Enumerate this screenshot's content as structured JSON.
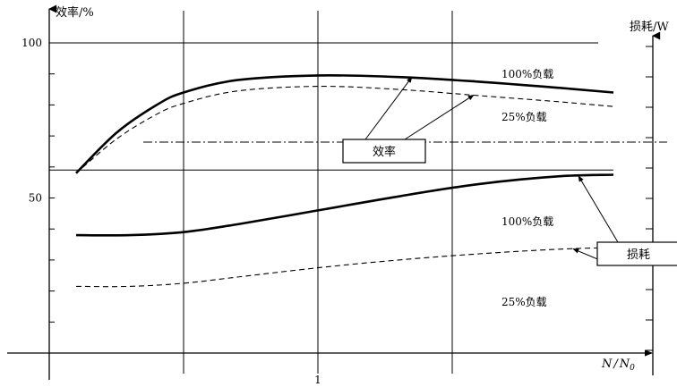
{
  "chart_data": {
    "type": "line",
    "title": "",
    "axes": {
      "left_label": "效率/%",
      "right_label": "损耗/W",
      "x_label_main": "N",
      "x_label_sep": "/",
      "x_label_sub": "N",
      "x_label_subscript": "0",
      "y_ticks": [
        {
          "label": "100",
          "value": 100
        },
        {
          "label": "50",
          "value": 50
        }
      ],
      "x_ticks": [
        {
          "label": "1",
          "value": 1.0
        }
      ],
      "x_range": [
        0.0,
        2.3
      ],
      "y_range": [
        0,
        110
      ]
    },
    "grid": {
      "vertical": [
        0.5,
        1.0,
        1.5
      ],
      "horizontal": [
        100
      ]
    },
    "boxes": {
      "efficiency": "效率",
      "loss": "损耗"
    },
    "series": [
      {
        "group": "efficiency",
        "name": "100%负载",
        "style": "solid-thick",
        "x": [
          0.1,
          0.25,
          0.4,
          0.5,
          0.7,
          1.0,
          1.3,
          1.6,
          1.9,
          2.1
        ],
        "y": [
          58.0,
          71.0,
          80.0,
          84.0,
          88.0,
          89.5,
          89.0,
          87.5,
          85.5,
          84.0
        ]
      },
      {
        "group": "efficiency",
        "name": "25%负载",
        "style": "dashed",
        "x": [
          0.1,
          0.25,
          0.4,
          0.5,
          0.7,
          1.0,
          1.3,
          1.6,
          1.9,
          2.1
        ],
        "y": [
          58.0,
          69.0,
          77.0,
          80.5,
          84.5,
          86.0,
          85.0,
          83.0,
          81.0,
          79.5
        ]
      },
      {
        "group": "loss",
        "name": "100%负载",
        "style": "solid-thick",
        "x": [
          0.1,
          0.3,
          0.5,
          0.7,
          1.0,
          1.3,
          1.6,
          1.9,
          2.1
        ],
        "y": [
          38.0,
          38.0,
          39.0,
          41.5,
          46.0,
          50.5,
          54.5,
          57.0,
          57.5
        ]
      },
      {
        "group": "loss",
        "name": "25%负载",
        "style": "dashed",
        "x": [
          0.1,
          0.3,
          0.5,
          0.7,
          1.0,
          1.3,
          1.6,
          1.9,
          2.1
        ],
        "y": [
          21.5,
          21.5,
          22.5,
          24.5,
          27.5,
          30.0,
          32.0,
          33.5,
          34.0
        ]
      }
    ],
    "reference_lines": [
      {
        "style": "solid",
        "y": 59,
        "x_from": 0.0,
        "x_to": 2.1
      },
      {
        "style": "dash-dot",
        "y": 68,
        "x_from": 0.35,
        "x_to": 2.3
      }
    ]
  }
}
